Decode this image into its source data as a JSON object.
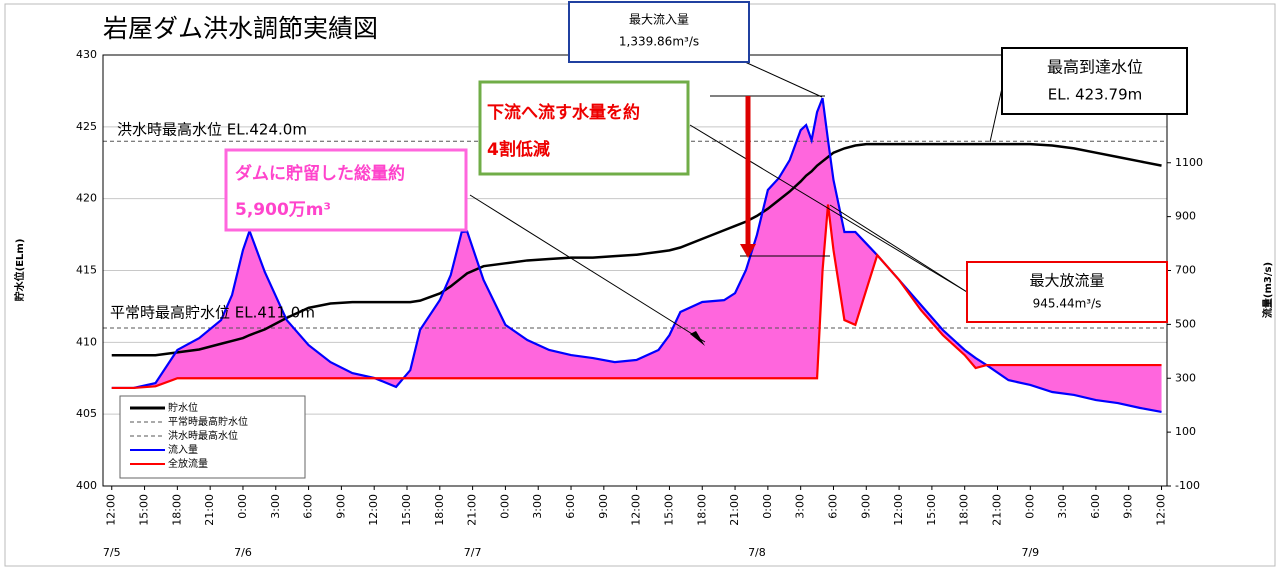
{
  "chart_data": {
    "type": "line",
    "title": "岩屋ダム洪水調節実績図",
    "y_label": "貯水位(ELm)",
    "y2_label": "流量(m3/s)",
    "xlim": [
      -0.8,
      96.5
    ],
    "ylim": [
      400,
      430
    ],
    "yticks": [
      400,
      405,
      410,
      415,
      420,
      425,
      430
    ],
    "y2lim": [
      -100,
      1500
    ],
    "y2ticks": [
      -100,
      100,
      300,
      500,
      700,
      900,
      1100
    ],
    "grid": true,
    "xticks": [
      {
        "value": 0,
        "label": "12:00"
      },
      {
        "value": 3,
        "label": "15:00"
      },
      {
        "value": 6,
        "label": "18:00"
      },
      {
        "value": 9,
        "label": "21:00"
      },
      {
        "value": 12,
        "label": "0:00"
      },
      {
        "value": 15,
        "label": "3:00"
      },
      {
        "value": 18,
        "label": "6:00"
      },
      {
        "value": 21,
        "label": "9:00"
      },
      {
        "value": 24,
        "label": "12:00"
      },
      {
        "value": 27,
        "label": "15:00"
      },
      {
        "value": 30,
        "label": "18:00"
      },
      {
        "value": 33,
        "label": "21:00"
      },
      {
        "value": 36,
        "label": "0:00"
      },
      {
        "value": 39,
        "label": "3:00"
      },
      {
        "value": 42,
        "label": "6:00"
      },
      {
        "value": 45,
        "label": "9:00"
      },
      {
        "value": 48,
        "label": "12:00"
      },
      {
        "value": 51,
        "label": "15:00"
      },
      {
        "value": 54,
        "label": "18:00"
      },
      {
        "value": 57,
        "label": "21:00"
      },
      {
        "value": 60,
        "label": "0:00"
      },
      {
        "value": 63,
        "label": "3:00"
      },
      {
        "value": 66,
        "label": "6:00"
      },
      {
        "value": 69,
        "label": "9:00"
      },
      {
        "value": 72,
        "label": "12:00"
      },
      {
        "value": 75,
        "label": "15:00"
      },
      {
        "value": 78,
        "label": "18:00"
      },
      {
        "value": 81,
        "label": "21:00"
      },
      {
        "value": 84,
        "label": "0:00"
      },
      {
        "value": 87,
        "label": "3:00"
      },
      {
        "value": 90,
        "label": "6:00"
      },
      {
        "value": 93,
        "label": "9:00"
      },
      {
        "value": 96,
        "label": "12:00"
      }
    ],
    "date_labels": [
      {
        "value": 0,
        "label": "7/5"
      },
      {
        "value": 12,
        "label": "7/6"
      },
      {
        "value": 33,
        "label": "7/7"
      },
      {
        "value": 59,
        "label": "7/8"
      },
      {
        "value": 84,
        "label": "7/9"
      }
    ],
    "x": [
      0,
      2,
      4,
      6,
      8,
      10,
      11,
      12,
      12.6,
      14,
      16,
      18,
      20,
      22,
      24,
      26,
      27.3,
      28.2,
      30,
      31,
      32,
      32.5,
      34,
      36,
      38,
      40,
      42,
      44,
      46,
      48,
      50,
      51,
      52,
      54,
      56,
      57,
      58,
      59,
      60,
      61,
      62,
      63,
      63.5,
      64,
      64.5,
      65,
      65.5,
      66,
      67,
      68,
      69,
      70,
      72,
      74,
      76,
      78,
      79,
      80,
      82,
      84,
      86,
      88,
      90,
      92,
      94,
      96
    ],
    "series": [
      {
        "name": "貯水位",
        "color": "#000000",
        "axis": "y",
        "values": [
          409.1,
          409.1,
          409.1,
          409.3,
          409.5,
          409.9,
          410.1,
          410.3,
          410.5,
          410.9,
          411.7,
          412.4,
          412.7,
          412.8,
          412.8,
          412.8,
          412.8,
          412.9,
          413.4,
          413.9,
          414.5,
          414.8,
          415.3,
          415.5,
          415.7,
          415.8,
          415.9,
          415.9,
          416.0,
          416.1,
          416.3,
          416.4,
          416.6,
          417.2,
          417.8,
          418.1,
          418.4,
          418.8,
          419.3,
          419.9,
          420.5,
          421.2,
          421.6,
          421.9,
          422.3,
          422.6,
          422.9,
          423.2,
          423.5,
          423.7,
          423.8,
          423.8,
          423.8,
          423.8,
          423.8,
          423.8,
          423.8,
          423.8,
          423.8,
          423.8,
          423.7,
          423.5,
          423.2,
          422.9,
          422.6,
          422.3
        ]
      },
      {
        "name": "流入量",
        "color": "#0000ff",
        "axis": "y2",
        "values": [
          264,
          264,
          282,
          405,
          449,
          516,
          609,
          776,
          847,
          694,
          516,
          423,
          360,
          319,
          301,
          268,
          330,
          480,
          590,
          683,
          843,
          845,
          665,
          498,
          442,
          405,
          386,
          375,
          360,
          368,
          405,
          460,
          546,
          583,
          590,
          616,
          702,
          832,
          999,
          1043,
          1110,
          1221,
          1240,
          1184,
          1288,
          1340,
          1184,
          1036,
          843,
          843,
          800,
          757,
          665,
          572,
          479,
          405,
          375,
          349,
          293,
          275,
          249,
          238,
          219,
          208,
          190,
          175
        ]
      },
      {
        "name": "全放流量",
        "color": "#ff0000",
        "axis": "y2",
        "values": [
          264,
          264,
          270,
          300,
          300,
          300,
          300,
          300,
          300,
          300,
          300,
          300,
          300,
          300,
          300,
          300,
          300,
          300,
          300,
          300,
          300,
          300,
          300,
          300,
          300,
          300,
          300,
          300,
          300,
          300,
          300,
          300,
          300,
          300,
          300,
          300,
          300,
          300,
          300,
          300,
          300,
          300,
          300,
          300,
          300,
          700,
          945,
          776,
          516,
          498,
          628,
          757,
          665,
          553,
          460,
          386,
          338,
          349,
          349,
          349,
          349,
          349,
          349,
          349,
          349,
          349
        ]
      }
    ],
    "reference_lines": [
      {
        "name": "平常時最高貯水位",
        "value": 411,
        "label": "平常時最高貯水位  EL.411.0m"
      },
      {
        "name": "洪水時最高水位",
        "value": 424,
        "label": "洪水時最高水位  EL.424.0m"
      }
    ],
    "fill_color": "#ff66dd",
    "annotations": {
      "max_inflow": [
        "最大流入量",
        "1,339.86m³/s"
      ],
      "max_level": [
        "最高到達水位",
        "EL. 423.79m"
      ],
      "reduction": [
        "下流へ流す水量を約",
        "4割低減"
      ],
      "storage": [
        "ダムに貯留した総量約",
        "5,900万m³"
      ],
      "max_outflow": [
        "最大放流量",
        "945.44m³/s"
      ]
    }
  }
}
